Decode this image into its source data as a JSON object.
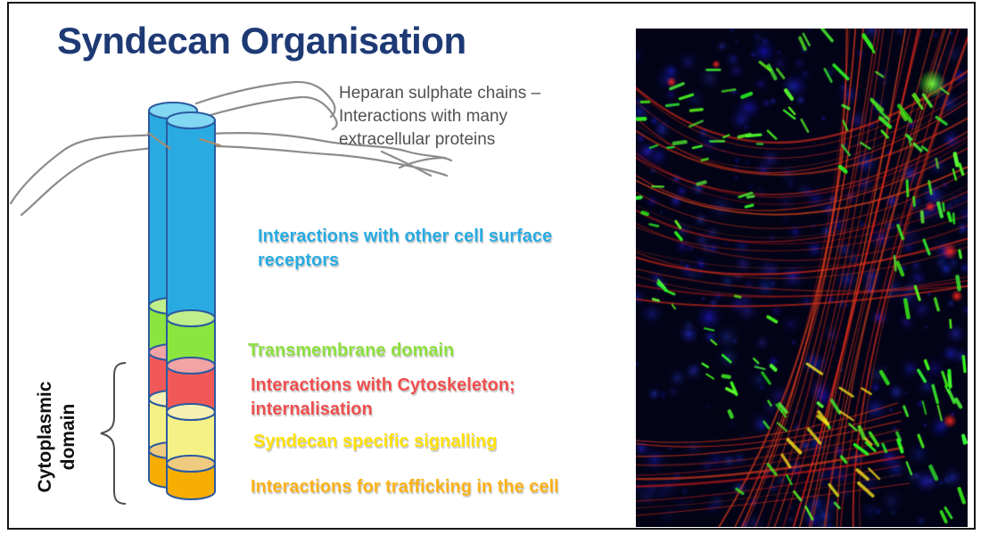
{
  "slide_title": "Syndecan Organisation",
  "annotations": {
    "heparan_chains": {
      "text": "Heparan sulphate chains –\nInteractions with many\nextracellular proteins",
      "color": "#515151"
    },
    "cell_surface_receptors": {
      "text": "Interactions with other cell surface\nreceptors",
      "color": "#29abe2"
    },
    "transmembrane_domain": {
      "text": "Transmembrane domain",
      "color": "#8de03e"
    },
    "cytoskeleton": {
      "text": "Interactions with Cytoskeleton;\ninternalisation",
      "color": "#f14f4f"
    },
    "syndecan_signalling": {
      "text": "Syndecan specific signalling",
      "color": "#ffe10a"
    },
    "trafficking": {
      "text": "Interactions for trafficking in the cell",
      "color": "#fbb217"
    },
    "cytoplasmic_domain": {
      "text": "Cytoplasmic\ndomain",
      "color": "#101010"
    }
  },
  "diagram": {
    "segment_colors": {
      "extracellular_core": "#29abe2",
      "transmembrane": "#8ce53f",
      "cytoskeleton_interaction": "#f15959",
      "signalling": "#f6f186",
      "trafficking": "#f6ae03"
    },
    "chain_color": "#8c8c8c",
    "outline_color": "#2b5aa0"
  },
  "micrograph": {
    "palette": {
      "background": "#030318",
      "blue_stain": "#1c2bd0",
      "red_fibers": "#e02820",
      "green_adhesions": "#3ce52a",
      "yellow_overlap": "#f0d81e"
    }
  }
}
